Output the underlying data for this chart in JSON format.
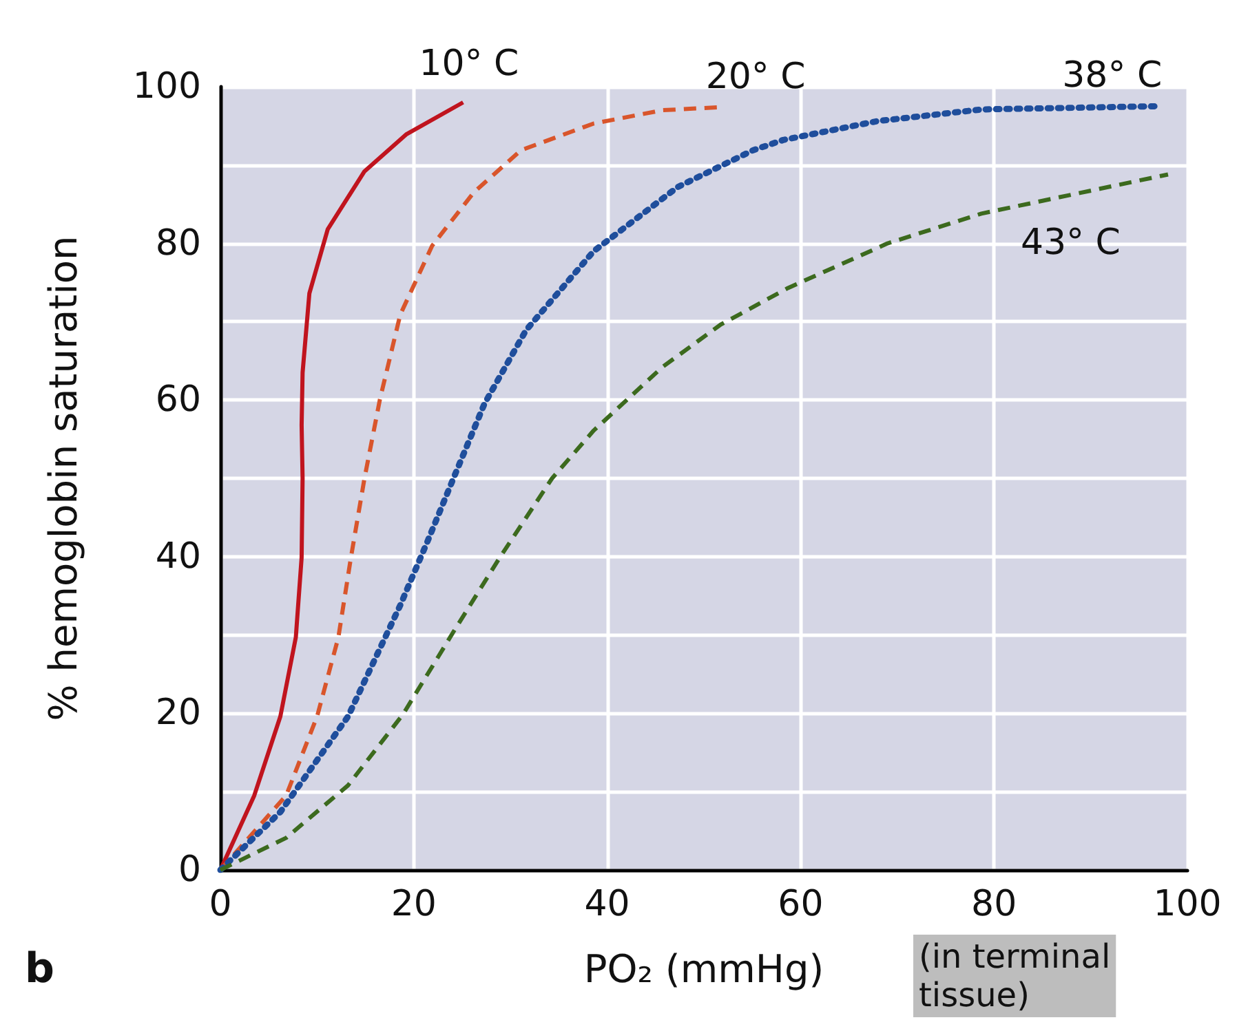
{
  "chart_data": {
    "type": "line",
    "xlabel": "PO₂ (mmHg)",
    "ylabel": "% hemoglobin saturation",
    "xlim": [
      0,
      100
    ],
    "xticks": [
      0,
      20,
      40,
      60,
      80,
      100
    ],
    "ylim": [
      0,
      100
    ],
    "yticks": [
      0,
      {
        "value": 10,
        "label": null
      },
      20,
      {
        "value": 30,
        "label": null
      },
      40,
      {
        "value": 50,
        "label": null
      },
      60,
      {
        "value": 70,
        "label": null
      },
      80,
      {
        "value": 90,
        "label": null
      },
      100
    ],
    "grid": true,
    "legend": false,
    "marker": "none",
    "annotations": [
      "b",
      "(in terminal tissue)"
    ],
    "series": [
      {
        "name": "10° C",
        "color": "#c0141e",
        "line_style": "solid",
        "x": [
          0,
          3.5,
          6.2,
          7.8,
          8.4,
          8.5,
          8.4,
          8.5,
          9.2,
          11.1,
          14.9,
          19.2,
          25.1
        ],
        "values": [
          0,
          9.5,
          19.6,
          29.7,
          39.9,
          50,
          56.8,
          63.5,
          73.6,
          81.8,
          89.2,
          93.9,
          98
        ]
      },
      {
        "name": "20° C",
        "color": "#d9552b",
        "line_style": "dashed",
        "x": [
          0,
          6.8,
          10,
          12.2,
          13.5,
          14.9,
          16.5,
          18.6,
          21.9,
          26.2,
          31.1,
          38.6,
          45.7,
          51.9
        ],
        "values": [
          0,
          9.5,
          19.6,
          29.7,
          39.9,
          50,
          60.1,
          70.9,
          79.7,
          86.5,
          91.9,
          95.3,
          97,
          97.4
        ]
      },
      {
        "name": "38° C",
        "color": "#1f4e9c",
        "line_style": "dotted",
        "x": [
          0,
          6.2,
          13.2,
          18.6,
          21.4,
          24.1,
          27.3,
          31.6,
          38.6,
          47.3,
          55.1,
          58.2,
          67.9,
          78.7,
          96.6
        ],
        "values": [
          0,
          7.4,
          19.6,
          33.8,
          41.9,
          50,
          59.5,
          68.9,
          79,
          87.2,
          91.9,
          93.2,
          95.6,
          97.1,
          97.5
        ]
      },
      {
        "name": "43° C",
        "color": "#3c6a1e",
        "line_style": "dashed",
        "x": [
          0,
          6.8,
          13.2,
          18.9,
          24.1,
          28.9,
          34.3,
          38.6,
          45.7,
          51.7,
          58.7,
          69,
          78.7,
          98
        ],
        "values": [
          0,
          4.1,
          10.8,
          19.9,
          30.4,
          39.9,
          50,
          56.1,
          64.2,
          69.6,
          74.3,
          80,
          83.8,
          88.8
        ]
      }
    ]
  }
}
